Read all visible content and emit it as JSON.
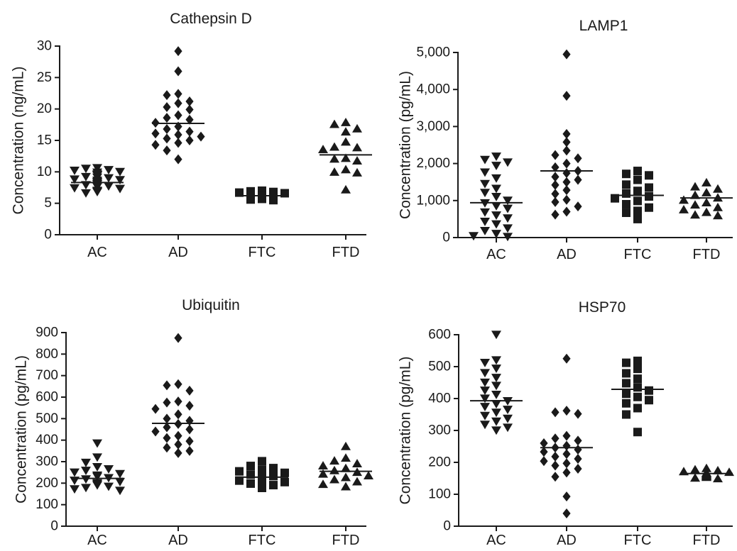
{
  "chart_data": [
    {
      "type": "scatter",
      "title": "Cathepsin D",
      "ylabel": "Concentration (ng/mL)",
      "categories": [
        "AC",
        "AD",
        "FTC",
        "FTD"
      ],
      "ylim": [
        0,
        30
      ],
      "yticks": [
        "0",
        "5",
        "10",
        "15",
        "20",
        "25",
        "30"
      ],
      "yticks_values": [
        0,
        5,
        10,
        15,
        20,
        25,
        30
      ],
      "marker_by_group": [
        "triangle-down",
        "diamond",
        "square",
        "triangle-up"
      ],
      "means": [
        8.3,
        17.7,
        6.2,
        12.7
      ],
      "groups": [
        [
          10.6,
          10.5,
          10.3,
          10.2,
          10.0,
          9.9,
          9.6,
          9.5,
          9.4,
          9.2,
          9.1,
          9.0,
          8.8,
          8.7,
          8.6,
          8.4,
          8.3,
          8.1,
          8.0,
          7.9,
          7.7,
          7.6,
          7.4,
          7.3,
          7.0,
          6.9,
          6.8,
          6.6
        ],
        [
          29.2,
          26.0,
          22.4,
          22.2,
          21.2,
          20.9,
          20.3,
          19.9,
          19.0,
          18.6,
          18.3,
          17.8,
          17.2,
          16.8,
          16.4,
          16.1,
          15.9,
          15.6,
          15.3,
          15.0,
          14.6,
          14.3,
          13.4,
          12.0
        ],
        [
          7.0,
          6.9,
          6.8,
          6.7,
          6.6,
          6.5,
          6.4,
          6.3,
          6.2,
          6.1,
          6.0,
          5.9,
          5.8,
          5.7,
          5.6,
          5.5
        ],
        [
          17.9,
          17.6,
          16.9,
          16.4,
          14.8,
          14.0,
          13.9,
          13.6,
          12.2,
          12.1,
          11.8,
          10.4,
          10.0,
          9.9,
          7.2
        ]
      ]
    },
    {
      "type": "scatter",
      "title": "LAMP1",
      "ylabel": "Concentration (pg/mL)",
      "categories": [
        "AC",
        "AD",
        "FTC",
        "FTD"
      ],
      "ylim": [
        0,
        5000
      ],
      "yticks": [
        "0",
        "1,000",
        "2,000",
        "3,000",
        "4,000",
        "5,000"
      ],
      "yticks_values": [
        0,
        1000,
        2000,
        3000,
        4000,
        5000
      ],
      "marker_by_group": [
        "triangle-down",
        "diamond",
        "square",
        "triangle-up"
      ],
      "means": [
        940,
        1800,
        1140,
        1070
      ],
      "groups": [
        [
          2190,
          2100,
          2030,
          1940,
          1760,
          1600,
          1450,
          1320,
          1210,
          1100,
          1000,
          930,
          850,
          780,
          680,
          600,
          520,
          430,
          360,
          250,
          180,
          100,
          40,
          20
        ],
        [
          4950,
          3830,
          2800,
          2580,
          2350,
          2230,
          2140,
          2000,
          1900,
          1800,
          1740,
          1640,
          1560,
          1500,
          1420,
          1280,
          1180,
          1020,
          960,
          840,
          700,
          620
        ],
        [
          1800,
          1720,
          1680,
          1560,
          1430,
          1350,
          1260,
          1190,
          1110,
          1060,
          990,
          900,
          810,
          720,
          670,
          500
        ],
        [
          1490,
          1380,
          1320,
          1220,
          1150,
          1080,
          1020,
          950,
          890,
          820,
          760,
          690,
          620,
          600
        ]
      ]
    },
    {
      "type": "scatter",
      "title": "Ubiquitin",
      "ylabel": "Concentration (pg/mL)",
      "categories": [
        "AC",
        "AD",
        "FTC",
        "FTD"
      ],
      "ylim": [
        0,
        900
      ],
      "yticks": [
        "0",
        "100",
        "200",
        "300",
        "400",
        "500",
        "600",
        "700",
        "800",
        "900"
      ],
      "yticks_values": [
        0,
        100,
        200,
        300,
        400,
        500,
        600,
        700,
        800,
        900
      ],
      "marker_by_group": [
        "triangle-down",
        "diamond",
        "square",
        "triangle-up"
      ],
      "means": [
        222,
        478,
        228,
        255
      ],
      "groups": [
        [
          385,
          320,
          295,
          275,
          265,
          258,
          250,
          243,
          236,
          230,
          224,
          218,
          212,
          206,
          200,
          195,
          190,
          184,
          178,
          172,
          165
        ],
        [
          875,
          660,
          655,
          630,
          580,
          575,
          560,
          545,
          520,
          500,
          490,
          475,
          460,
          450,
          440,
          420,
          410,
          395,
          380,
          365,
          350,
          340
        ],
        [
          302,
          280,
          270,
          262,
          255,
          248,
          240,
          233,
          226,
          219,
          212,
          205,
          198,
          191,
          184,
          178
        ],
        [
          372,
          318,
          305,
          292,
          282,
          270,
          260,
          252,
          244,
          236,
          228,
          218,
          208,
          196,
          185
        ]
      ]
    },
    {
      "type": "scatter",
      "title": "HSP70",
      "ylabel": "Concentration (pg/mL)",
      "categories": [
        "AC",
        "AD",
        "FTC",
        "FTD"
      ],
      "ylim": [
        0,
        600
      ],
      "yticks": [
        "0",
        "100",
        "200",
        "300",
        "400",
        "500",
        "600"
      ],
      "yticks_values": [
        0,
        100,
        200,
        300,
        400,
        500,
        600
      ],
      "marker_by_group": [
        "triangle-down",
        "diamond",
        "square",
        "triangle-up"
      ],
      "means": [
        393,
        246,
        429,
        165
      ],
      "groups": [
        [
          600,
          520,
          512,
          494,
          480,
          465,
          450,
          440,
          425,
          412,
          400,
          392,
          383,
          374,
          365,
          356,
          346,
          337,
          328,
          318,
          309,
          300
        ],
        [
          525,
          362,
          357,
          352,
          283,
          275,
          268,
          260,
          252,
          246,
          240,
          233,
          226,
          218,
          211,
          204,
          197,
          190,
          180,
          168,
          155,
          93,
          40
        ],
        [
          518,
          512,
          493,
          479,
          462,
          448,
          435,
          425,
          415,
          405,
          395,
          385,
          370,
          350,
          295
        ],
        [
          182,
          178,
          175,
          172,
          170,
          168,
          166,
          164,
          162,
          160,
          158,
          156,
          154,
          152,
          150
        ]
      ]
    }
  ]
}
